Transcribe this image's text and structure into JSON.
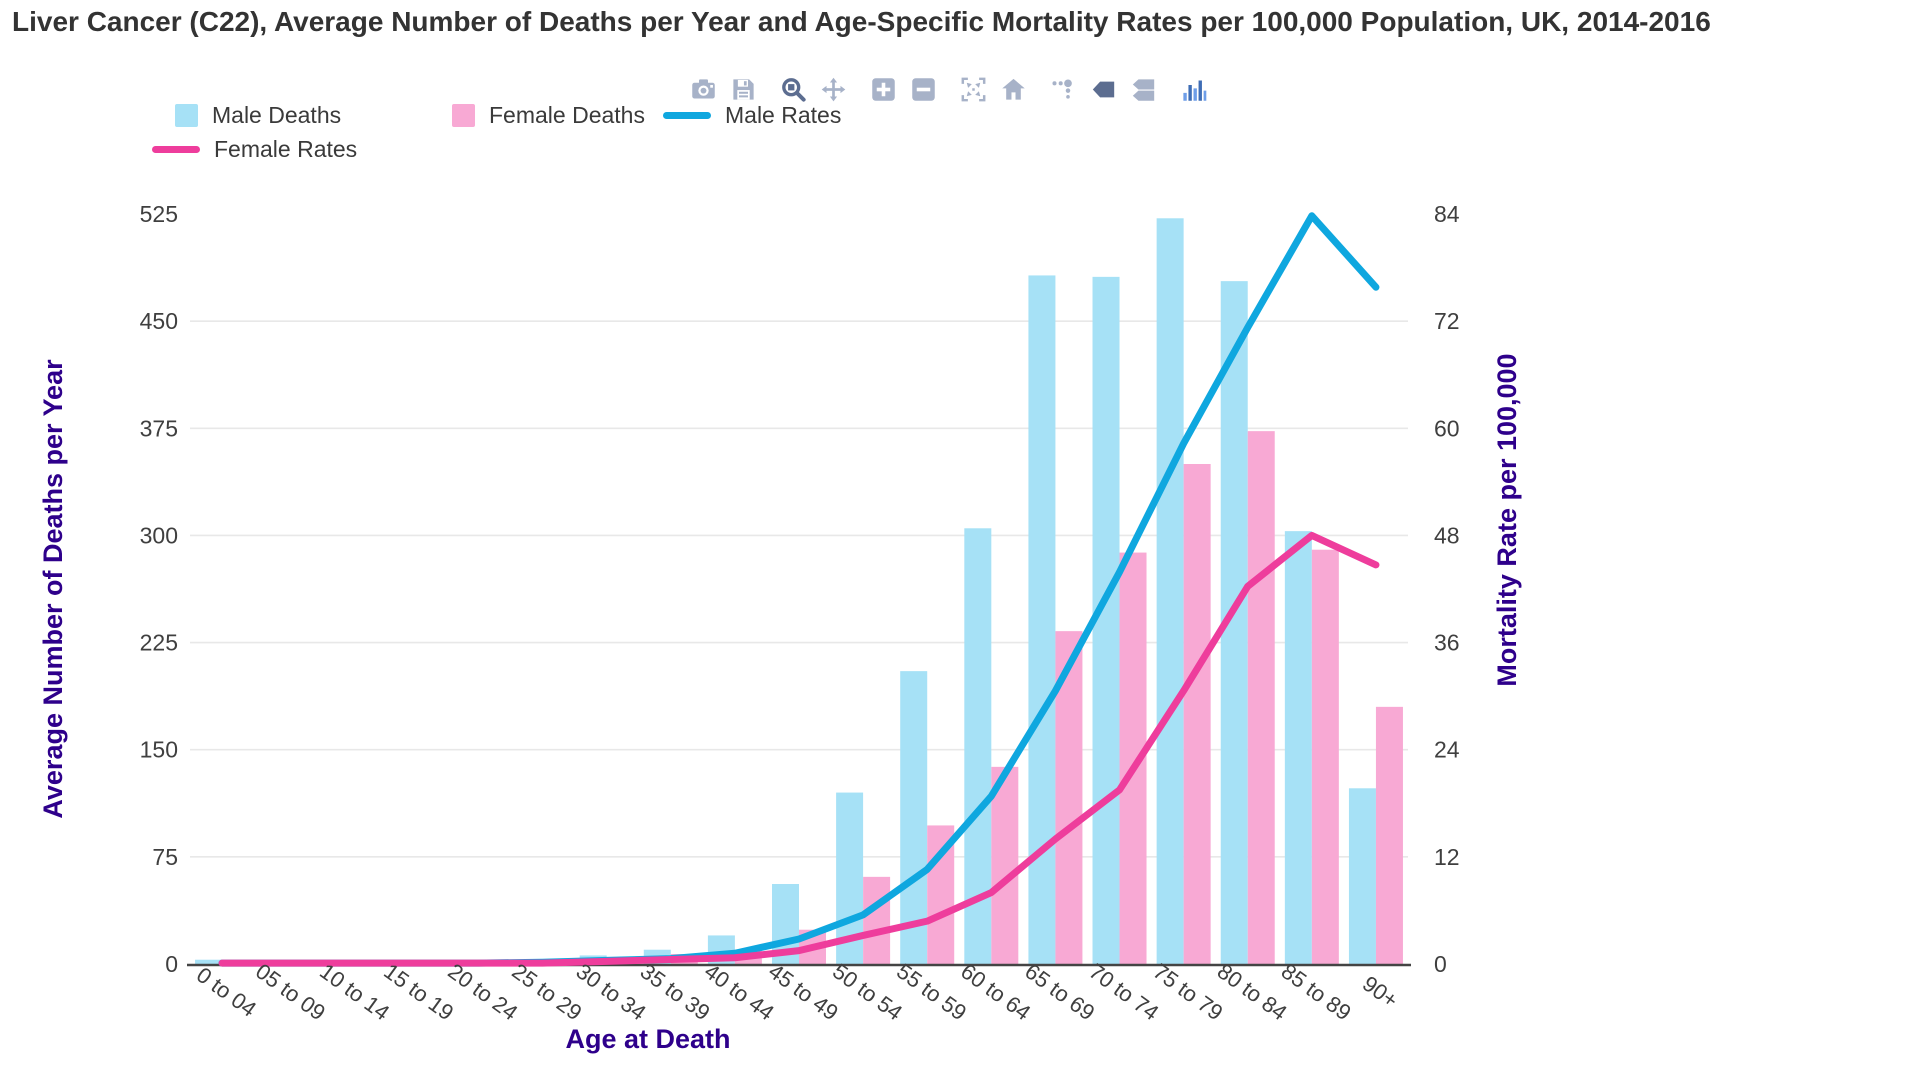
{
  "title": "Liver Cancer (C22), Average Number of Deaths per Year and Age-Specific Mortality Rates per 100,000 Population, UK, 2014-2016",
  "legend": {
    "items": [
      {
        "label": "Male Deaths",
        "swatch": "square",
        "color": "#A6E1F6"
      },
      {
        "label": "Female Deaths",
        "swatch": "square",
        "color": "#F8A9D4"
      },
      {
        "label": "Male Rates",
        "swatch": "line",
        "color": "#0FA7DF"
      },
      {
        "label": "Female Rates",
        "swatch": "line",
        "color": "#EE3D9C"
      }
    ]
  },
  "modebar": {
    "icons": [
      {
        "name": "camera-icon",
        "active": false
      },
      {
        "name": "save-icon",
        "active": false
      },
      {
        "name": "zoom-icon",
        "active": true
      },
      {
        "name": "pan-icon",
        "active": false
      },
      {
        "name": "zoom-in-icon",
        "active": false
      },
      {
        "name": "zoom-out-icon",
        "active": false
      },
      {
        "name": "autoscale-icon",
        "active": false
      },
      {
        "name": "home-icon",
        "active": false
      },
      {
        "name": "spikelines-icon",
        "active": false
      },
      {
        "name": "hover-closest-icon",
        "active": true
      },
      {
        "name": "hover-compare-icon",
        "active": false
      },
      {
        "name": "plotly-logo-icon",
        "active": false
      }
    ]
  },
  "chart_data": {
    "type": "bar",
    "subtype": "grouped-bars-with-dual-axis-lines",
    "categories": [
      "0 to 04",
      "05 to 09",
      "10 to 14",
      "15 to 19",
      "20 to 24",
      "25 to 29",
      "30 to 34",
      "35 to 39",
      "40 to 44",
      "45 to 49",
      "50 to 54",
      "55 to 59",
      "60 to 64",
      "65 to 69",
      "70 to 74",
      "75 to 79",
      "80 to 84",
      "85 to 89",
      "90+"
    ],
    "series": [
      {
        "name": "Male Deaths",
        "type": "bar",
        "axis": "left",
        "color": "#A6E1F6",
        "values": [
          3,
          1,
          1,
          1,
          2,
          3,
          6,
          10,
          20,
          56,
          120,
          205,
          305,
          482,
          481,
          522,
          478,
          303,
          123
        ]
      },
      {
        "name": "Female Deaths",
        "type": "bar",
        "axis": "left",
        "color": "#F8A9D4",
        "values": [
          2,
          1,
          1,
          1,
          1,
          2,
          4,
          7,
          10,
          24,
          61,
          97,
          138,
          233,
          288,
          350,
          373,
          290,
          180
        ]
      },
      {
        "name": "Male Rates",
        "type": "line",
        "axis": "right",
        "color": "#0FA7DF",
        "values": [
          0.1,
          0.1,
          0.1,
          0.1,
          0.1,
          0.2,
          0.4,
          0.6,
          1.2,
          2.8,
          5.5,
          10.6,
          18.8,
          30.6,
          43.9,
          58.3,
          71.3,
          83.8,
          75.8
        ]
      },
      {
        "name": "Female Rates",
        "type": "line",
        "axis": "right",
        "color": "#EE3D9C",
        "values": [
          0.1,
          0.1,
          0.1,
          0.1,
          0.1,
          0.1,
          0.3,
          0.5,
          0.7,
          1.5,
          3.2,
          4.8,
          8,
          14,
          19.5,
          30.6,
          42.3,
          48,
          44.7
        ]
      }
    ],
    "left_axis": {
      "title": "Average Number of Deaths per Year",
      "ticks": [
        0,
        75,
        150,
        225,
        300,
        375,
        450,
        525
      ],
      "max": 525
    },
    "right_axis": {
      "title": "Mortality Rate per 100,000",
      "ticks": [
        0,
        12,
        24,
        36,
        48,
        60,
        72,
        84
      ],
      "max": 84
    },
    "x_axis": {
      "title": "Age at Death",
      "tick_angle": 36
    },
    "grid": true,
    "legend_position": "top-left"
  },
  "colors": {
    "title_text": "#333333",
    "axis_title_text": "#2E008B",
    "tick_text": "#3F3F3F",
    "gridline": "#E8E8E8",
    "axis_line": "#444444",
    "modebar_inactive": "#A7B2C8",
    "modebar_active": "#5C6D90",
    "logo_dark": "#3E6DB5",
    "logo_light": "#6E9EE8"
  }
}
